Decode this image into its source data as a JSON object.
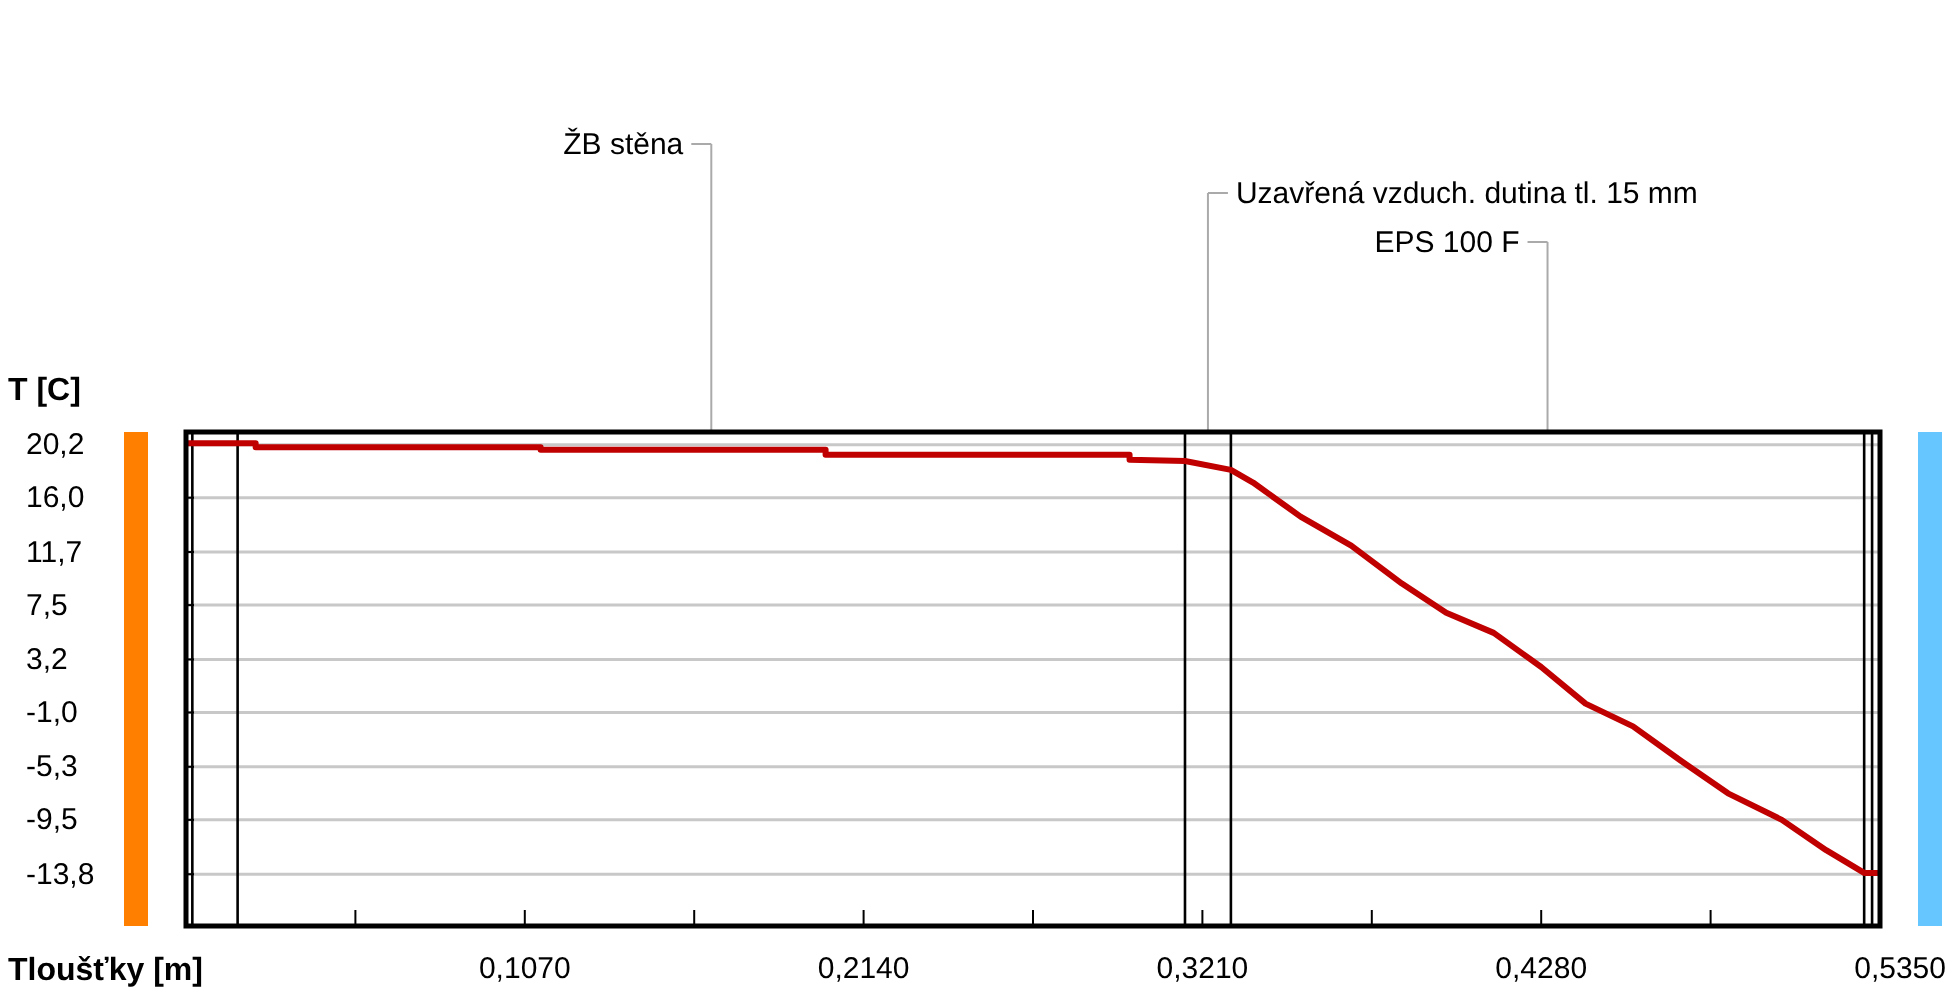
{
  "chart_data": {
    "type": "line",
    "xlabel": "Tloušťky [m]",
    "ylabel": "T [C]",
    "xlim": [
      0,
      0.535
    ],
    "ylim": [
      -17.9,
      21.2
    ],
    "xticks": [
      {
        "value": 0.0535,
        "label": null
      },
      {
        "value": 0.107,
        "label": "0,1070"
      },
      {
        "value": 0.1605,
        "label": null
      },
      {
        "value": 0.214,
        "label": "0,2140"
      },
      {
        "value": 0.2675,
        "label": null
      },
      {
        "value": 0.321,
        "label": "0,3210"
      },
      {
        "value": 0.3745,
        "label": null
      },
      {
        "value": 0.428,
        "label": "0,4280"
      },
      {
        "value": 0.4815,
        "label": null
      },
      {
        "value": 0.535,
        "label": "0,5350"
      }
    ],
    "yticks": [
      {
        "value": 20.2,
        "label": "20,2"
      },
      {
        "value": 16.0,
        "label": "16,0"
      },
      {
        "value": 11.7,
        "label": "11,7"
      },
      {
        "value": 7.5,
        "label": "7,5"
      },
      {
        "value": 3.2,
        "label": "3,2"
      },
      {
        "value": -1.0,
        "label": "-1,0"
      },
      {
        "value": -5.3,
        "label": "-5,3"
      },
      {
        "value": -9.5,
        "label": "-9,5"
      },
      {
        "value": -13.8,
        "label": "-13,8"
      }
    ],
    "grid": "y",
    "series": [
      {
        "color": "#c00000",
        "x": [
          0,
          0.022,
          0.022,
          0.112,
          0.112,
          0.202,
          0.202,
          0.298,
          0.298,
          0.3155,
          0.33,
          0.337,
          0.352,
          0.368,
          0.384,
          0.398,
          0.413,
          0.428,
          0.442,
          0.457,
          0.472,
          0.487,
          0.504,
          0.518,
          0.53,
          0.535
        ],
        "values": [
          20.3,
          20.3,
          20.0,
          20.0,
          19.8,
          19.8,
          19.4,
          19.4,
          19.0,
          18.9,
          18.2,
          17.2,
          14.5,
          12.2,
          9.2,
          6.9,
          5.3,
          2.6,
          -0.3,
          -2.1,
          -4.8,
          -7.4,
          -9.5,
          -11.9,
          -13.7,
          -13.7
        ]
      }
    ],
    "ref_lines": [
      {
        "axis": "x",
        "value": 0.002,
        "color": "#000000"
      },
      {
        "axis": "x",
        "value": 0.0163,
        "color": "#000000"
      },
      {
        "axis": "x",
        "value": 0.3155,
        "color": "#000000"
      },
      {
        "axis": "x",
        "value": 0.33,
        "color": "#000000"
      },
      {
        "axis": "x",
        "value": 0.53,
        "color": "#000000"
      },
      {
        "axis": "x",
        "value": 0.5325,
        "color": "#000000"
      }
    ],
    "annotations": [
      "ŽB stěna",
      "Uzavřená vzduch. dutina tl. 15 mm",
      "EPS 100 F"
    ]
  }
}
